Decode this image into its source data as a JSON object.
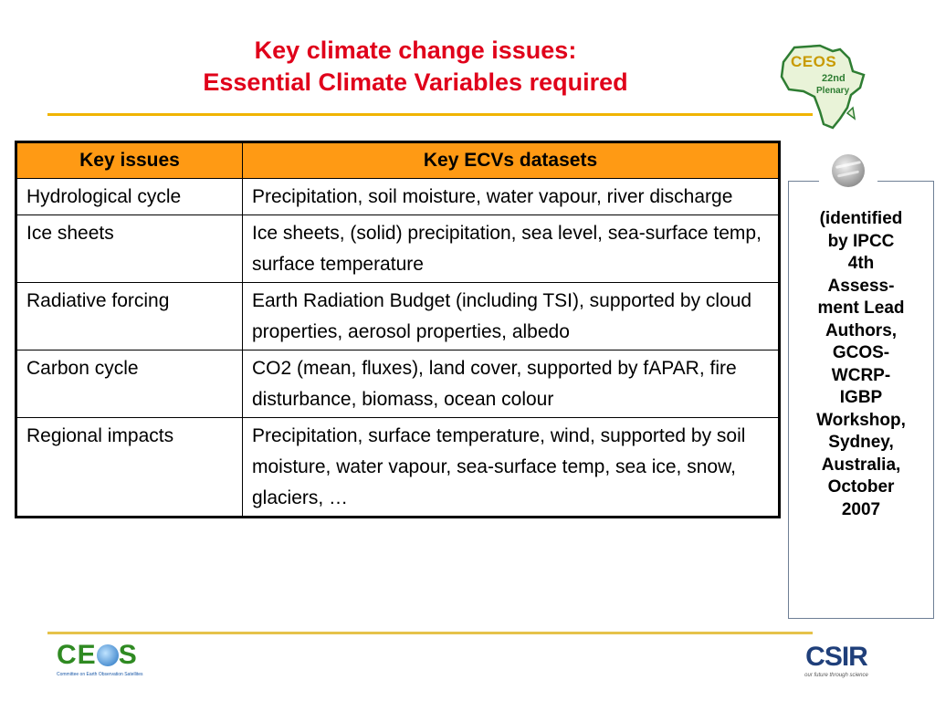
{
  "title": {
    "line1": "Key climate change issues:",
    "line2": "Essential Climate Variables required"
  },
  "logos": {
    "plenary": {
      "ceos": "CEOS",
      "number": "22nd",
      "plenary": "Plenary"
    },
    "ceos_footer": {
      "wordmark_left": "CE",
      "wordmark_right": "S",
      "subtitle": "Committee on Earth Observation Satellites"
    },
    "csir": {
      "wordmark": "CSIR",
      "tagline": "our future through science"
    }
  },
  "table": {
    "headers": [
      "Key issues",
      "Key ECVs datasets"
    ],
    "rows": [
      {
        "issue": "Hydrological cycle",
        "ecvs": "Precipitation, soil moisture, water vapour, river discharge"
      },
      {
        "issue": "Ice sheets",
        "ecvs": "Ice sheets, (solid) precipitation, sea level, sea-surface temp, surface temperature"
      },
      {
        "issue": "Radiative forcing",
        "ecvs": "Earth Radiation Budget (including TSI), supported by cloud properties, aerosol properties, albedo"
      },
      {
        "issue": "Carbon cycle",
        "ecvs": "CO2 (mean, fluxes), land cover, supported by fAPAR, fire disturbance, biomass, ocean colour"
      },
      {
        "issue": "Regional impacts",
        "ecvs": "Precipitation, surface temperature, wind, supported by soil moisture, water vapour, sea-surface temp, sea ice, snow, glaciers, …"
      }
    ]
  },
  "note": {
    "lines": [
      "(identified",
      "by IPCC",
      "4th",
      "Assess-",
      "ment Lead",
      "Authors,",
      "GCOS-",
      "WCRP-",
      "IGBP",
      "Workshop,",
      "Sydney,",
      "Australia,",
      "October",
      "2007"
    ]
  },
  "colors": {
    "title": "#e0001a",
    "header_fill": "#ff9a14",
    "rule": "#f0b400"
  }
}
